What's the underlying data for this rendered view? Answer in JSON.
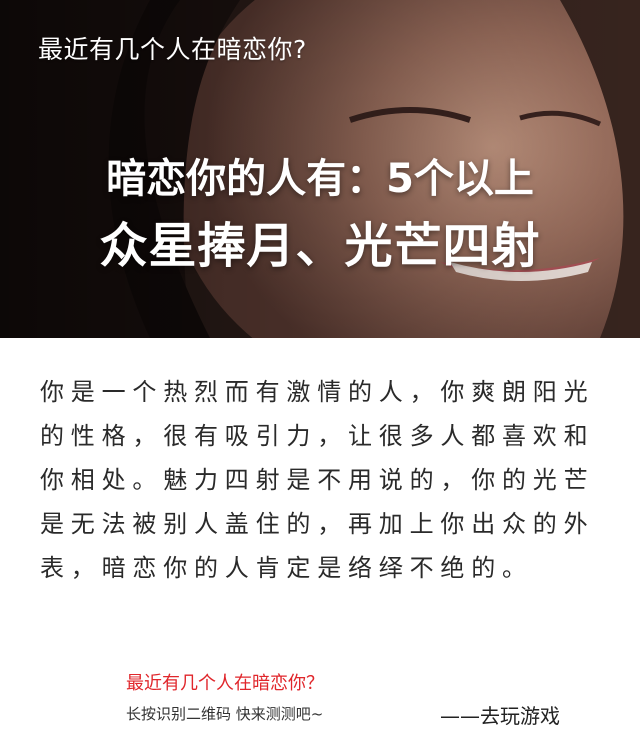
{
  "hero": {
    "question": "最近有几个人在暗恋你?",
    "result": "暗恋你的人有：5个以上",
    "slogan": "众星捧月、光芒四射"
  },
  "description": "你是一个热烈而有激情的人，你爽朗阳光的性格，很有吸引力，让很多人都喜欢和你相处。魅力四射是不用说的，你的光芒是无法被别人盖住的，再加上你出众的外表，暗恋你的人肯定是络绎不绝的。",
  "footer": {
    "question": "最近有几个人在暗恋你？",
    "hint": "长按识别二维码   快来测测吧~",
    "signature": "——去玩游戏"
  },
  "colors": {
    "accent": "#e0262b",
    "hero_bg": "#2b1a16",
    "text": "#2a2a2a"
  }
}
